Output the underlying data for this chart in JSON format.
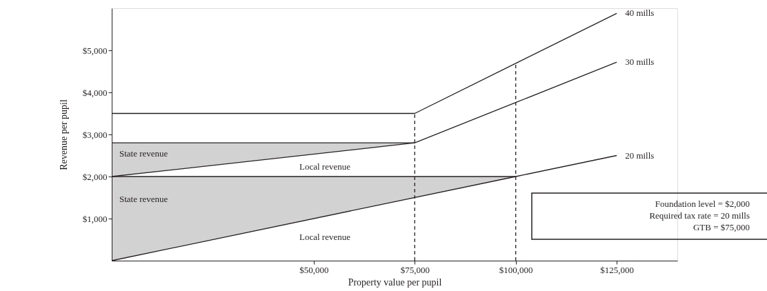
{
  "chart_data": {
    "type": "line",
    "xlabel": "Property value per pupil",
    "ylabel": "Revenue per pupil",
    "xlim": [
      0,
      140000
    ],
    "ylim": [
      0,
      6000
    ],
    "xticks": [
      {
        "value": 50000,
        "label": "$50,000"
      },
      {
        "value": 75000,
        "label": "$75,000"
      },
      {
        "value": 100000,
        "label": "$100,000"
      },
      {
        "value": 125000,
        "label": "$125,000"
      }
    ],
    "yticks": [
      {
        "value": 1000,
        "label": "$1,000"
      },
      {
        "value": 2000,
        "label": "$2,000"
      },
      {
        "value": 3000,
        "label": "$3,000"
      },
      {
        "value": 4000,
        "label": "$4,000"
      },
      {
        "value": 5000,
        "label": "$5,000"
      }
    ],
    "grid": false,
    "series": [
      {
        "type": "line",
        "name": "40 mills",
        "color": "#231f20",
        "x": [
          0,
          75000,
          100000,
          125000
        ],
        "values": [
          3500,
          3500,
          4690,
          5880
        ]
      },
      {
        "type": "line",
        "name": "30 mills",
        "color": "#231f20",
        "x": [
          0,
          75000,
          100000,
          125000
        ],
        "values": [
          2800,
          2800,
          3760,
          4720
        ]
      },
      {
        "type": "line",
        "name": "20 mills",
        "color": "#231f20",
        "x": [
          0,
          100000,
          125000
        ],
        "values": [
          0,
          2000,
          2500
        ],
        "lower": [
          0,
          2000,
          2500
        ],
        "upper": [
          2000,
          2000,
          2500
        ]
      },
      {
        "type": "line",
        "color": "#231f20",
        "x": [
          0,
          75000
        ],
        "values": [
          2000,
          2800
        ],
        "lower": [
          2000,
          2800
        ],
        "upper": [
          2800,
          2800
        ]
      },
      {
        "type": "line",
        "color": "#231f20",
        "x": [
          0,
          100000
        ],
        "values": [
          2000,
          2000
        ]
      },
      {
        "type": "line",
        "color": "#231f20",
        "line_style": "dashed",
        "x": [
          75000,
          75000
        ],
        "values": [
          0,
          3500
        ]
      },
      {
        "type": "line",
        "color": "#231f20",
        "line_style": "dashed",
        "x": [
          100000,
          100000
        ],
        "values": [
          0,
          4690
        ]
      }
    ],
    "annotations": [
      "State revenue",
      "Local revenue",
      "State revenue",
      "Local revenue",
      "Foundation level = $2,000",
      "Required tax rate = 20 mills",
      "GTB = $75,000"
    ]
  }
}
